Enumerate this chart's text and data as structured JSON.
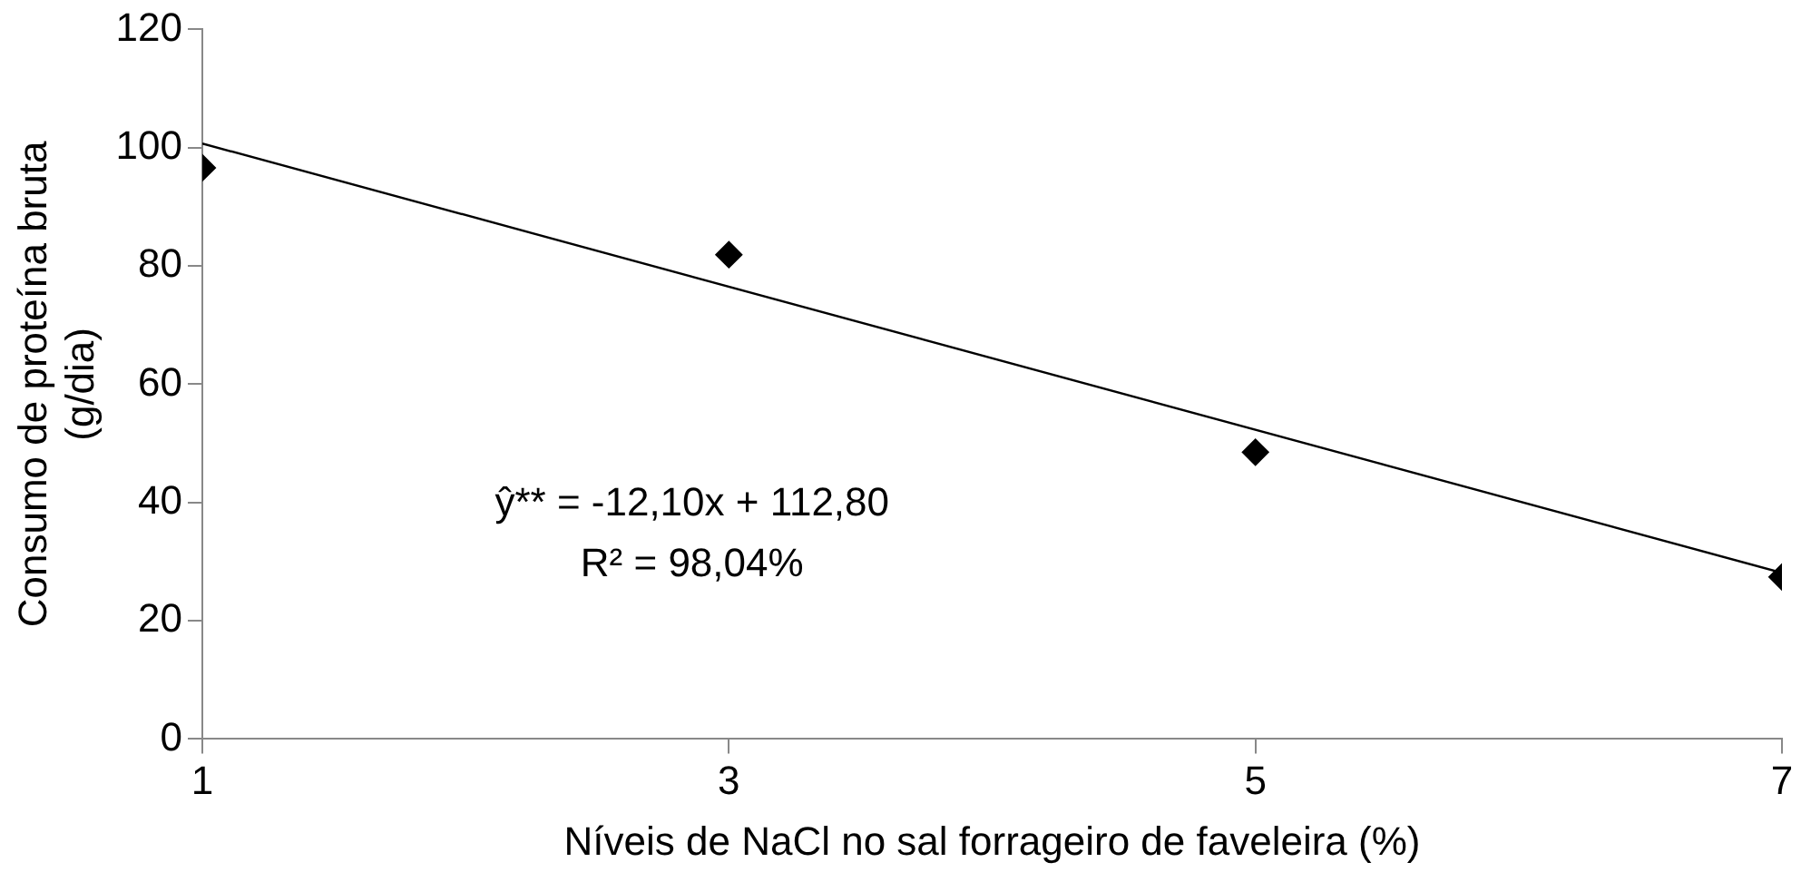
{
  "chart_data": {
    "type": "scatter",
    "xlabel": "Níveis de NaCl no sal forrageiro de faveleira (%)",
    "ylabel": "Consumo de proteína bruta (g/dia)",
    "xlim": [
      1,
      7
    ],
    "xticks": [
      1,
      3,
      5,
      7
    ],
    "ylim": [
      0,
      120
    ],
    "yticks": [
      0,
      20,
      40,
      60,
      80,
      100,
      120
    ],
    "grid": false,
    "legend": false,
    "marker": "diamond",
    "series": [
      {
        "type": "scatter",
        "color": "#000000",
        "x": [
          1,
          3,
          5,
          7
        ],
        "values": [
          96.6,
          81.9,
          48.5,
          27.4
        ]
      },
      {
        "type": "line",
        "color": "#000000",
        "x": [
          1,
          7
        ],
        "values": [
          100.7,
          28.1
        ],
        "marker": "none"
      }
    ],
    "annotations": [
      "ŷ** = -12,10x + 112,80",
      "R² = 98,04%"
    ]
  }
}
